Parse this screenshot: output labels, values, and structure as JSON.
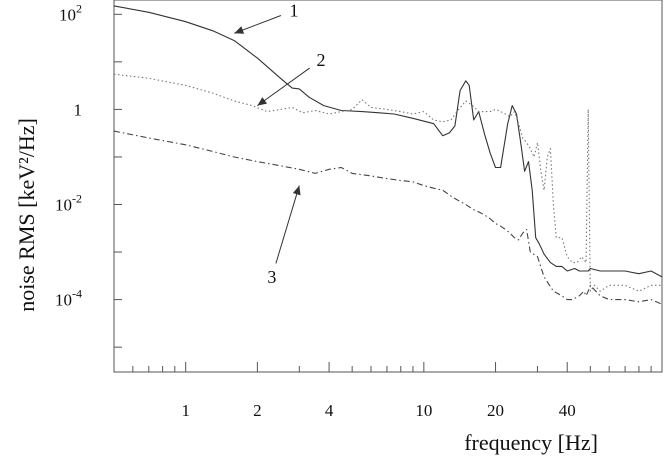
{
  "chart_data": {
    "type": "line",
    "title": "",
    "xlabel": "frequency [Hz]",
    "ylabel": "noise RMS [keV²/Hz]",
    "x_scale": "log",
    "y_scale": "log",
    "xlim": [
      0.5,
      100
    ],
    "ylim": [
      3e-06,
      200
    ],
    "grid": false,
    "legend": "none",
    "x_ticks": [
      {
        "value": 1,
        "label": "1"
      },
      {
        "value": 2,
        "label": "2"
      },
      {
        "value": 4,
        "label": "4"
      },
      {
        "value": 10,
        "label": "10"
      },
      {
        "value": 20,
        "label": "20"
      },
      {
        "value": 40,
        "label": "40"
      }
    ],
    "y_ticks": [
      {
        "value": 100,
        "label": "10",
        "exp": "2"
      },
      {
        "value": 1,
        "label": "1",
        "exp": ""
      },
      {
        "value": 0.01,
        "label": "10",
        "exp": "-2"
      },
      {
        "value": 0.0001,
        "label": "10",
        "exp": "-4"
      }
    ],
    "annotations": [
      {
        "text": "1",
        "series": 0,
        "text_at": [
          2.85,
          120
        ],
        "arrow_to": [
          1.6,
          40
        ]
      },
      {
        "text": "2",
        "series": 1,
        "text_at": [
          3.7,
          11
        ],
        "arrow_to": [
          2.0,
          1.2
        ]
      },
      {
        "text": "3",
        "series": 2,
        "text_at": [
          2.3,
          0.0003
        ],
        "arrow_to": [
          3.0,
          0.025
        ]
      }
    ],
    "series": [
      {
        "style": "solid",
        "color": "#333333",
        "x": [
          0.5,
          0.7,
          1.0,
          1.3,
          1.6,
          2.0,
          2.5,
          2.8,
          3.0,
          3.3,
          3.8,
          4.5,
          5.5,
          6.5,
          7.5,
          9.0,
          11.0,
          12.0,
          12.8,
          13.5,
          14.2,
          15.0,
          15.5,
          16.2,
          17.0,
          18.0,
          19.0,
          20.0,
          21.0,
          22.5,
          23.5,
          24.5,
          25.5,
          26.5,
          27.5,
          28.5,
          29.5,
          30.5,
          32.0,
          34.0,
          36.0,
          38.0,
          40.0,
          43.0,
          45.0,
          47.0,
          48.0,
          49.0,
          50.0,
          55.0,
          60.0,
          70.0,
          80.0,
          90.0,
          100.0
        ],
        "y": [
          150,
          110,
          70,
          45,
          28,
          12,
          4.5,
          2.8,
          2.7,
          1.8,
          1.2,
          0.95,
          0.9,
          0.85,
          0.8,
          0.65,
          0.5,
          0.28,
          0.32,
          0.45,
          2.5,
          4.0,
          3.2,
          0.6,
          0.9,
          0.3,
          0.12,
          0.06,
          0.06,
          0.5,
          1.2,
          0.8,
          0.2,
          0.05,
          0.08,
          0.02,
          0.002,
          0.0015,
          0.0009,
          0.0006,
          0.0005,
          0.0005,
          0.0004,
          0.00045,
          0.0004,
          0.0004,
          0.0004,
          0.0004,
          0.00045,
          0.0004,
          0.0004,
          0.0004,
          0.00035,
          0.0004,
          0.0003
        ]
      },
      {
        "style": "dotted",
        "color": "#777777",
        "x": [
          0.5,
          0.7,
          1.0,
          1.3,
          1.6,
          1.9,
          2.2,
          2.5,
          2.8,
          3.1,
          3.5,
          4.0,
          4.5,
          5.0,
          5.5,
          6.0,
          7.0,
          8.0,
          9.0,
          10.0,
          11.0,
          12.0,
          13.0,
          14.0,
          15.0,
          16.0,
          17.0,
          18.0,
          19.0,
          20.0,
          21.0,
          22.0,
          23.0,
          24.0,
          25.0,
          26.0,
          27.0,
          28.0,
          29.0,
          30.0,
          31.0,
          32.0,
          33.0,
          34.0,
          35.0,
          36.0,
          38.0,
          40.0,
          42.0,
          44.0,
          46.0,
          48.0,
          49.0,
          50.0,
          52.0,
          55.0,
          60.0,
          70.0,
          80.0,
          90.0,
          100.0
        ],
        "y": [
          5.5,
          4.5,
          3.2,
          2.2,
          1.5,
          1.2,
          0.9,
          1.0,
          1.1,
          0.85,
          0.95,
          0.8,
          0.9,
          1.0,
          1.6,
          1.1,
          1.0,
          0.9,
          0.8,
          0.9,
          0.6,
          0.55,
          0.6,
          1.0,
          1.5,
          1.2,
          0.9,
          0.9,
          0.9,
          1.0,
          0.9,
          0.8,
          0.7,
          0.9,
          0.5,
          0.25,
          0.2,
          0.15,
          0.1,
          0.2,
          0.05,
          0.02,
          0.1,
          0.15,
          0.01,
          0.002,
          0.002,
          0.0008,
          0.0006,
          0.0006,
          0.0008,
          0.0006,
          1.0,
          0.00015,
          0.0002,
          0.00015,
          0.0002,
          0.0002,
          0.00015,
          0.0002,
          0.0002
        ]
      },
      {
        "style": "dashdot",
        "color": "#444444",
        "x": [
          0.5,
          0.7,
          1.0,
          1.3,
          1.6,
          2.0,
          2.5,
          3.0,
          3.5,
          4.0,
          4.5,
          5.0,
          6.0,
          7.0,
          8.0,
          9.0,
          10.0,
          11.0,
          12.0,
          13.0,
          14.0,
          15.0,
          16.0,
          17.0,
          18.0,
          19.0,
          20.0,
          21.0,
          22.0,
          23.0,
          24.0,
          25.0,
          26.0,
          27.0,
          28.0,
          30.0,
          32.0,
          35.0,
          38.0,
          40.0,
          42.0,
          45.0,
          47.0,
          48.0,
          49.0,
          50.0,
          55.0,
          60.0,
          70.0,
          80.0,
          90.0,
          100.0
        ],
        "y": [
          0.35,
          0.25,
          0.18,
          0.13,
          0.1,
          0.08,
          0.065,
          0.055,
          0.045,
          0.055,
          0.06,
          0.045,
          0.04,
          0.035,
          0.032,
          0.03,
          0.025,
          0.022,
          0.02,
          0.015,
          0.012,
          0.01,
          0.008,
          0.007,
          0.006,
          0.005,
          0.004,
          0.0035,
          0.003,
          0.0025,
          0.002,
          0.0018,
          0.0025,
          0.003,
          0.001,
          0.0008,
          0.0003,
          0.00015,
          0.00012,
          0.0001,
          0.0001,
          0.00012,
          0.00015,
          0.00012,
          0.00015,
          0.0002,
          0.00012,
          0.0001,
          0.0001,
          9e-05,
          0.0001,
          8e-05
        ]
      }
    ]
  }
}
